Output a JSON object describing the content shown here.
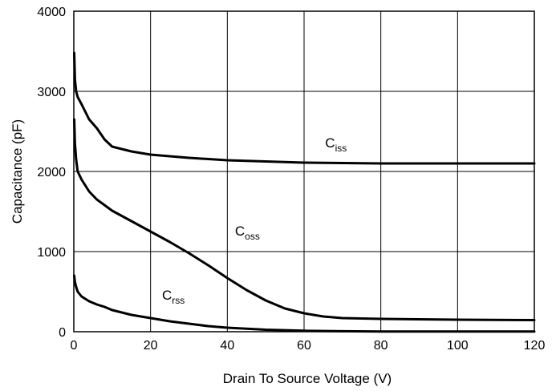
{
  "chart_data": {
    "type": "line",
    "title": "",
    "xlabel": "Drain To Source Voltage (V)",
    "ylabel": "Capacitance (pF)",
    "xlim": [
      0,
      120
    ],
    "ylim": [
      0,
      4000
    ],
    "xticks": [
      0,
      20,
      40,
      60,
      80,
      100,
      120
    ],
    "yticks": [
      0,
      1000,
      2000,
      3000,
      4000
    ],
    "grid": true,
    "legend": "none",
    "series": [
      {
        "name": "Ciss",
        "label_main": "C",
        "label_sub": "iss",
        "x": [
          0.1,
          0.3,
          0.6,
          1,
          2,
          4,
          6,
          8,
          10,
          15,
          20,
          30,
          40,
          60,
          80,
          100,
          120
        ],
        "y": [
          3480,
          3150,
          3000,
          2930,
          2840,
          2650,
          2540,
          2400,
          2310,
          2250,
          2210,
          2170,
          2140,
          2110,
          2100,
          2100,
          2100
        ]
      },
      {
        "name": "Coss",
        "label_main": "C",
        "label_sub": "oss",
        "x": [
          0.1,
          0.3,
          0.6,
          1,
          2,
          4,
          6,
          8,
          10,
          15,
          20,
          25,
          30,
          35,
          40,
          45,
          50,
          55,
          60,
          65,
          70,
          80,
          100,
          120
        ],
        "y": [
          2650,
          2350,
          2150,
          2000,
          1900,
          1750,
          1650,
          1580,
          1510,
          1380,
          1250,
          1120,
          980,
          830,
          670,
          520,
          390,
          290,
          230,
          190,
          170,
          160,
          150,
          145
        ]
      },
      {
        "name": "Crss",
        "label_main": "C",
        "label_sub": "rss",
        "x": [
          0.1,
          0.3,
          0.6,
          1,
          2,
          4,
          6,
          8,
          10,
          15,
          20,
          25,
          30,
          35,
          40,
          50,
          60,
          70,
          80,
          100,
          120
        ],
        "y": [
          700,
          620,
          560,
          500,
          440,
          380,
          340,
          310,
          270,
          210,
          170,
          130,
          100,
          70,
          50,
          25,
          12,
          6,
          3,
          2,
          2
        ]
      }
    ]
  }
}
